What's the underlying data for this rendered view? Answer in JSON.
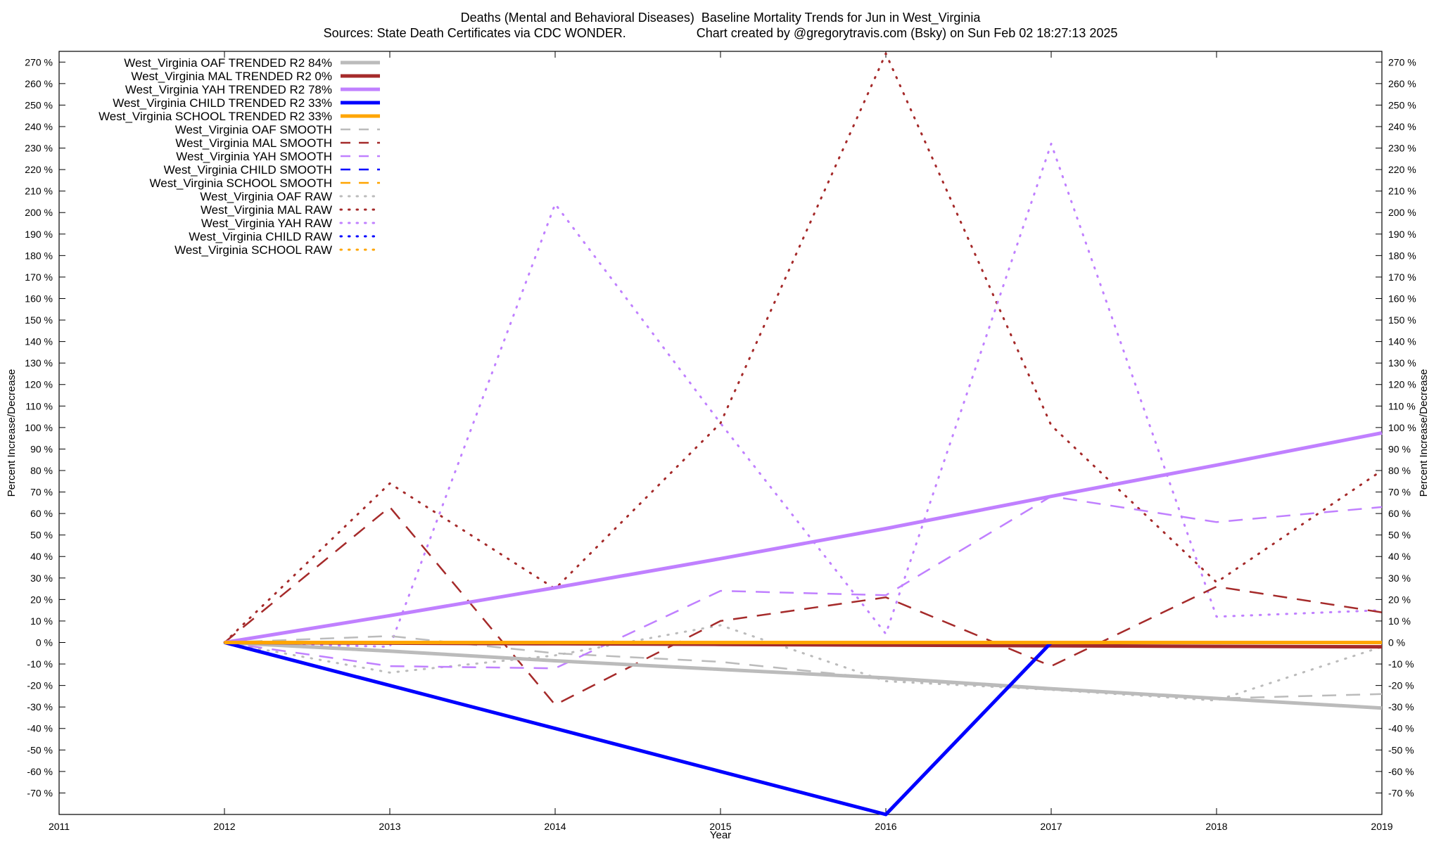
{
  "chart_data": {
    "type": "line",
    "title": "Deaths (Mental and Behavioral Diseases)  Baseline Mortality Trends for Jun in West_Virginia",
    "subtitle_left": "Sources: State Death Certificates via CDC WONDER.",
    "subtitle_right": "Chart created by @gregorytravis.com (Bsky) on Sun Feb 02 18:27:13 2025",
    "xlabel": "Year",
    "ylabel": "Percent Increase/Decrease",
    "xlim": [
      2011,
      2019
    ],
    "ylim": [
      -80,
      275
    ],
    "grid": false,
    "legend_placement": "top-left",
    "x_ticks": [
      "2011",
      "2012",
      "2013",
      "2014",
      "2015",
      "2016",
      "2017",
      "2018",
      "2019"
    ],
    "y_ticks": [
      "-70 %",
      "-60 %",
      "-50 %",
      "-40 %",
      "-30 %",
      "-20 %",
      "-10 %",
      "0 %",
      "10 %",
      "20 %",
      "30 %",
      "40 %",
      "50 %",
      "60 %",
      "70 %",
      "80 %",
      "90 %",
      "100 %",
      "110 %",
      "120 %",
      "130 %",
      "140 %",
      "150 %",
      "160 %",
      "170 %",
      "180 %",
      "190 %",
      "200 %",
      "210 %",
      "220 %",
      "230 %",
      "240 %",
      "250 %",
      "260 %",
      "270 %"
    ],
    "x": [
      2012,
      2013,
      2014,
      2015,
      2016,
      2017,
      2018,
      2019
    ],
    "series": [
      {
        "name": "West_Virginia OAF TRENDED R2  84%",
        "color": "#bbbbbb",
        "style": "solid",
        "width": 5,
        "values": [
          0,
          -4,
          -8.5,
          -12.5,
          -16.5,
          -21.5,
          -26,
          -30.5
        ]
      },
      {
        "name": "West_Virginia MAL TRENDED R2   0%",
        "color": "#a52a2a",
        "style": "solid",
        "width": 5,
        "values": [
          0,
          -0.3,
          -0.6,
          -0.9,
          -1.2,
          -1.5,
          -1.8,
          -2
        ]
      },
      {
        "name": "West_Virginia YAH TRENDED R2  78%",
        "color": "#c080ff",
        "style": "solid",
        "width": 5,
        "values": [
          0,
          12.5,
          25.5,
          39,
          53,
          68,
          82.5,
          97.5
        ]
      },
      {
        "name": "West_Virginia CHILD TRENDED R2  33%",
        "color": "#0000ff",
        "style": "solid",
        "width": 5,
        "values": [
          0,
          -20,
          -40,
          -60,
          -80,
          0,
          0,
          0
        ]
      },
      {
        "name": "West_Virginia SCHOOL TRENDED R2  33%",
        "color": "#ffa500",
        "style": "solid",
        "width": 5,
        "values": [
          0,
          0,
          0,
          0,
          0,
          0,
          0,
          0
        ]
      },
      {
        "name": "West_Virginia OAF SMOOTH",
        "color": "#bbbbbb",
        "style": "dash",
        "width": 2.5,
        "values": [
          0,
          3,
          -5,
          -9,
          -17,
          -22,
          -26,
          -24
        ]
      },
      {
        "name": "West_Virginia MAL SMOOTH",
        "color": "#a52a2a",
        "style": "dash",
        "width": 2.5,
        "values": [
          0,
          63,
          -29,
          10,
          21,
          -11,
          26,
          14
        ]
      },
      {
        "name": "West_Virginia YAH SMOOTH",
        "color": "#c080ff",
        "style": "dash",
        "width": 2.5,
        "values": [
          0,
          -11,
          -12,
          24,
          22,
          68,
          56,
          63
        ]
      },
      {
        "name": "West_Virginia CHILD SMOOTH",
        "color": "#0000ff",
        "style": "dash",
        "width": 2.5,
        "values": [
          0,
          0,
          0,
          0,
          0,
          0,
          0,
          0
        ]
      },
      {
        "name": "West_Virginia SCHOOL SMOOTH",
        "color": "#ffa500",
        "style": "dash",
        "width": 2.5,
        "values": [
          0,
          0,
          0,
          0,
          0,
          0,
          0,
          0
        ]
      },
      {
        "name": "West_Virginia OAF RAW",
        "color": "#bbbbbb",
        "style": "dot",
        "width": 3,
        "values": [
          0,
          -14,
          -6,
          8,
          -18,
          -22,
          -27,
          -2
        ]
      },
      {
        "name": "West_Virginia MAL RAW",
        "color": "#a52a2a",
        "style": "dot",
        "width": 3,
        "values": [
          0,
          74,
          25,
          102,
          274,
          101,
          28,
          80
        ]
      },
      {
        "name": "West_Virginia YAH RAW",
        "color": "#c080ff",
        "style": "dot",
        "width": 3,
        "values": [
          0,
          -2,
          204,
          102,
          4,
          232,
          12,
          15
        ]
      },
      {
        "name": "West_Virginia CHILD RAW",
        "color": "#0000ff",
        "style": "dot",
        "width": 3,
        "values": [
          0,
          0,
          0,
          0,
          0,
          0,
          0,
          0
        ]
      },
      {
        "name": "West_Virginia SCHOOL RAW",
        "color": "#ffa500",
        "style": "dot",
        "width": 3,
        "values": [
          0,
          0,
          0,
          0,
          0,
          0,
          0,
          0
        ]
      }
    ]
  }
}
